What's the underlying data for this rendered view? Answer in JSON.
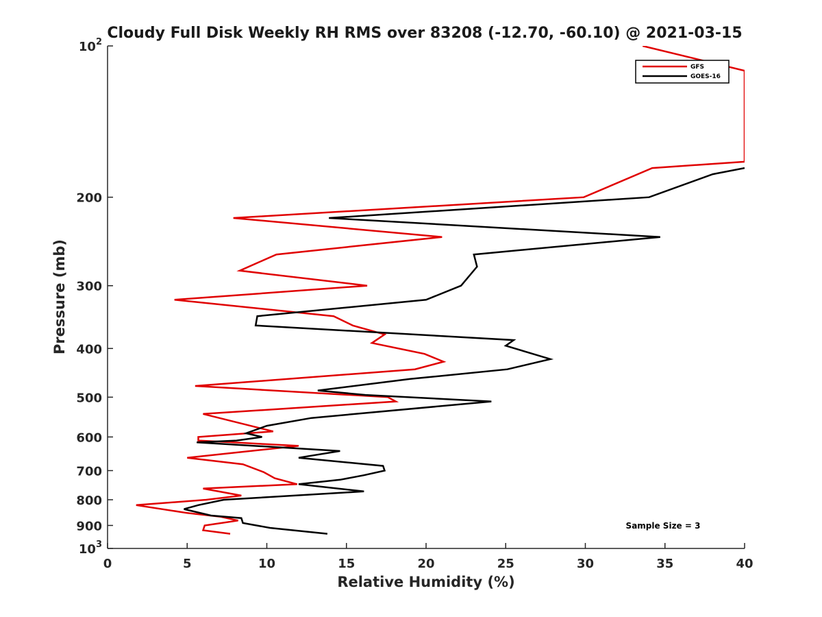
{
  "chart_data": {
    "type": "line",
    "title": "Cloudy Full Disk Weekly RH RMS over 83208 (-12.70, -60.10) @ 2021-03-15",
    "xlabel": "Relative Humidity (%)",
    "ylabel": "Pressure (mb)",
    "xlim": [
      0,
      40
    ],
    "ylim": [
      100,
      1000
    ],
    "yscale": "log",
    "y_reversed": true,
    "xticks": [
      0,
      5,
      10,
      15,
      20,
      25,
      30,
      35,
      40
    ],
    "yticks": [
      {
        "value": 100,
        "label": "10",
        "sup": "2"
      },
      {
        "value": 200,
        "label": "200",
        "sup": ""
      },
      {
        "value": 300,
        "label": "300",
        "sup": ""
      },
      {
        "value": 400,
        "label": "400",
        "sup": ""
      },
      {
        "value": 500,
        "label": "500",
        "sup": ""
      },
      {
        "value": 600,
        "label": "600",
        "sup": ""
      },
      {
        "value": 700,
        "label": "700",
        "sup": ""
      },
      {
        "value": 800,
        "label": "800",
        "sup": ""
      },
      {
        "value": 900,
        "label": "900",
        "sup": ""
      },
      {
        "value": 1000,
        "label": "10",
        "sup": "3"
      }
    ],
    "legend_position": "top-right",
    "annotation": "Sample Size = 3",
    "series": [
      {
        "name": "GFS",
        "color": "#e00000",
        "points": [
          [
            33.6,
            100
          ],
          [
            40.0,
            112
          ],
          [
            40.0,
            170
          ],
          [
            34.2,
            175
          ],
          [
            29.9,
            200
          ],
          [
            7.9,
            220
          ],
          [
            21.0,
            240
          ],
          [
            10.6,
            260
          ],
          [
            8.3,
            280
          ],
          [
            16.3,
            300
          ],
          [
            4.2,
            320
          ],
          [
            14.2,
            345
          ],
          [
            15.4,
            360
          ],
          [
            17.4,
            375
          ],
          [
            16.6,
            390
          ],
          [
            19.9,
            410
          ],
          [
            21.1,
            425
          ],
          [
            19.3,
            440
          ],
          [
            5.5,
            475
          ],
          [
            17.6,
            500
          ],
          [
            18.1,
            510
          ],
          [
            6.0,
            540
          ],
          [
            10.4,
            585
          ],
          [
            5.7,
            600
          ],
          [
            5.7,
            610
          ],
          [
            12.0,
            625
          ],
          [
            5.0,
            660
          ],
          [
            8.5,
            680
          ],
          [
            9.8,
            705
          ],
          [
            10.5,
            725
          ],
          [
            11.9,
            745
          ],
          [
            6.0,
            760
          ],
          [
            8.4,
            785
          ],
          [
            6.2,
            800
          ],
          [
            1.8,
            820
          ],
          [
            5.0,
            850
          ],
          [
            7.1,
            865
          ],
          [
            8.2,
            880
          ],
          [
            6.1,
            900
          ],
          [
            6.0,
            920
          ],
          [
            7.7,
            935
          ]
        ]
      },
      {
        "name": "GOES-16",
        "color": "#000000",
        "points": [
          [
            40.0,
            175
          ],
          [
            38.0,
            180
          ],
          [
            34.0,
            200
          ],
          [
            13.9,
            220
          ],
          [
            34.7,
            240
          ],
          [
            23.0,
            260
          ],
          [
            23.2,
            275
          ],
          [
            22.2,
            300
          ],
          [
            20.0,
            320
          ],
          [
            9.4,
            345
          ],
          [
            9.3,
            360
          ],
          [
            25.5,
            385
          ],
          [
            25.0,
            395
          ],
          [
            27.8,
            420
          ],
          [
            25.1,
            440
          ],
          [
            19.0,
            460
          ],
          [
            13.2,
            485
          ],
          [
            16.2,
            495
          ],
          [
            24.1,
            510
          ],
          [
            12.8,
            550
          ],
          [
            10.0,
            570
          ],
          [
            8.7,
            590
          ],
          [
            9.7,
            600
          ],
          [
            8.1,
            610
          ],
          [
            5.6,
            615
          ],
          [
            14.6,
            640
          ],
          [
            12.0,
            660
          ],
          [
            17.3,
            685
          ],
          [
            17.4,
            700
          ],
          [
            16.1,
            715
          ],
          [
            14.6,
            730
          ],
          [
            12.0,
            745
          ],
          [
            16.1,
            770
          ],
          [
            7.3,
            800
          ],
          [
            5.7,
            820
          ],
          [
            4.8,
            835
          ],
          [
            6.5,
            860
          ],
          [
            8.4,
            870
          ],
          [
            8.5,
            890
          ],
          [
            10.2,
            910
          ],
          [
            13.8,
            935
          ]
        ]
      }
    ]
  }
}
